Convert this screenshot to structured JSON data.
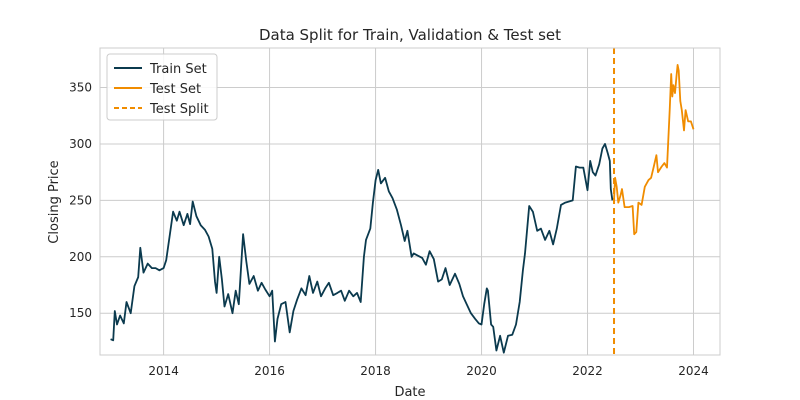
{
  "chart_data": {
    "type": "line",
    "title": "Data Split for Train, Validation & Test set",
    "xlabel": "Date",
    "ylabel": "Closing Price",
    "xlim": [
      2012.8,
      2024.5
    ],
    "ylim": [
      113,
      385
    ],
    "x_ticks": [
      2014,
      2016,
      2018,
      2020,
      2022,
      2024
    ],
    "x_tick_labels": [
      "2014",
      "2016",
      "2018",
      "2020",
      "2022",
      "2024"
    ],
    "y_ticks": [
      150,
      200,
      250,
      300,
      350
    ],
    "y_tick_labels": [
      "150",
      "200",
      "250",
      "300",
      "350"
    ],
    "grid": true,
    "legend": "top-left",
    "series": [
      {
        "name": "Train Set",
        "color": "#0b3a4e",
        "style": "solid",
        "points": [
          [
            2013.0,
            127
          ],
          [
            2013.05,
            126
          ],
          [
            2013.08,
            152
          ],
          [
            2013.12,
            140
          ],
          [
            2013.18,
            148
          ],
          [
            2013.25,
            141
          ],
          [
            2013.3,
            160
          ],
          [
            2013.38,
            150
          ],
          [
            2013.45,
            174
          ],
          [
            2013.52,
            182
          ],
          [
            2013.56,
            208
          ],
          [
            2013.62,
            186
          ],
          [
            2013.7,
            194
          ],
          [
            2013.78,
            190
          ],
          [
            2013.85,
            190
          ],
          [
            2013.92,
            188
          ],
          [
            2014.0,
            190
          ],
          [
            2014.05,
            197
          ],
          [
            2014.12,
            220
          ],
          [
            2014.18,
            240
          ],
          [
            2014.25,
            232
          ],
          [
            2014.3,
            240
          ],
          [
            2014.38,
            228
          ],
          [
            2014.45,
            238
          ],
          [
            2014.5,
            229
          ],
          [
            2014.55,
            249
          ],
          [
            2014.62,
            236
          ],
          [
            2014.7,
            228
          ],
          [
            2014.78,
            224
          ],
          [
            2014.85,
            218
          ],
          [
            2014.92,
            207
          ],
          [
            2014.97,
            178
          ],
          [
            2015.0,
            168
          ],
          [
            2015.05,
            200
          ],
          [
            2015.1,
            180
          ],
          [
            2015.15,
            156
          ],
          [
            2015.22,
            167
          ],
          [
            2015.3,
            150
          ],
          [
            2015.36,
            170
          ],
          [
            2015.42,
            158
          ],
          [
            2015.5,
            220
          ],
          [
            2015.56,
            196
          ],
          [
            2015.62,
            176
          ],
          [
            2015.7,
            183
          ],
          [
            2015.78,
            170
          ],
          [
            2015.85,
            177
          ],
          [
            2015.92,
            171
          ],
          [
            2016.0,
            165
          ],
          [
            2016.05,
            170
          ],
          [
            2016.1,
            125
          ],
          [
            2016.15,
            145
          ],
          [
            2016.22,
            158
          ],
          [
            2016.3,
            160
          ],
          [
            2016.38,
            133
          ],
          [
            2016.45,
            152
          ],
          [
            2016.52,
            162
          ],
          [
            2016.6,
            172
          ],
          [
            2016.68,
            166
          ],
          [
            2016.75,
            183
          ],
          [
            2016.82,
            168
          ],
          [
            2016.9,
            178
          ],
          [
            2016.97,
            165
          ],
          [
            2017.05,
            172
          ],
          [
            2017.12,
            177
          ],
          [
            2017.2,
            166
          ],
          [
            2017.28,
            168
          ],
          [
            2017.35,
            170
          ],
          [
            2017.42,
            161
          ],
          [
            2017.5,
            170
          ],
          [
            2017.58,
            165
          ],
          [
            2017.65,
            168
          ],
          [
            2017.72,
            160
          ],
          [
            2017.78,
            200
          ],
          [
            2017.82,
            215
          ],
          [
            2017.9,
            225
          ],
          [
            2017.95,
            248
          ],
          [
            2018.0,
            268
          ],
          [
            2018.05,
            277
          ],
          [
            2018.1,
            265
          ],
          [
            2018.18,
            270
          ],
          [
            2018.25,
            258
          ],
          [
            2018.32,
            252
          ],
          [
            2018.4,
            242
          ],
          [
            2018.48,
            228
          ],
          [
            2018.55,
            214
          ],
          [
            2018.6,
            223
          ],
          [
            2018.68,
            200
          ],
          [
            2018.72,
            203
          ],
          [
            2018.8,
            201
          ],
          [
            2018.88,
            199
          ],
          [
            2018.95,
            193
          ],
          [
            2019.02,
            205
          ],
          [
            2019.1,
            198
          ],
          [
            2019.18,
            178
          ],
          [
            2019.25,
            180
          ],
          [
            2019.32,
            190
          ],
          [
            2019.4,
            175
          ],
          [
            2019.5,
            185
          ],
          [
            2019.58,
            176
          ],
          [
            2019.65,
            165
          ],
          [
            2019.72,
            158
          ],
          [
            2019.8,
            150
          ],
          [
            2019.88,
            145
          ],
          [
            2019.95,
            141
          ],
          [
            2020.0,
            140
          ],
          [
            2020.05,
            158
          ],
          [
            2020.1,
            172
          ],
          [
            2020.12,
            170
          ],
          [
            2020.18,
            140
          ],
          [
            2020.22,
            138
          ],
          [
            2020.28,
            117
          ],
          [
            2020.35,
            130
          ],
          [
            2020.42,
            115
          ],
          [
            2020.5,
            130
          ],
          [
            2020.58,
            131
          ],
          [
            2020.65,
            140
          ],
          [
            2020.72,
            160
          ],
          [
            2020.78,
            188
          ],
          [
            2020.82,
            203
          ],
          [
            2020.9,
            245
          ],
          [
            2020.97,
            240
          ],
          [
            2021.05,
            223
          ],
          [
            2021.12,
            225
          ],
          [
            2021.2,
            215
          ],
          [
            2021.28,
            223
          ],
          [
            2021.35,
            211
          ],
          [
            2021.42,
            225
          ],
          [
            2021.5,
            246
          ],
          [
            2021.58,
            248
          ],
          [
            2021.65,
            249
          ],
          [
            2021.72,
            250
          ],
          [
            2021.78,
            280
          ],
          [
            2021.85,
            279
          ],
          [
            2021.92,
            279
          ],
          [
            2022.0,
            259
          ],
          [
            2022.05,
            285
          ],
          [
            2022.1,
            275
          ],
          [
            2022.15,
            272
          ],
          [
            2022.22,
            282
          ],
          [
            2022.28,
            296
          ],
          [
            2022.33,
            300
          ],
          [
            2022.38,
            292
          ],
          [
            2022.42,
            285
          ],
          [
            2022.44,
            260
          ],
          [
            2022.47,
            250
          ]
        ]
      },
      {
        "name": "Test Set",
        "color": "#f08c00",
        "style": "solid",
        "points": [
          [
            2022.5,
            250
          ],
          [
            2022.52,
            270
          ],
          [
            2022.55,
            262
          ],
          [
            2022.58,
            248
          ],
          [
            2022.62,
            254
          ],
          [
            2022.65,
            260
          ],
          [
            2022.7,
            244
          ],
          [
            2022.78,
            244
          ],
          [
            2022.85,
            245
          ],
          [
            2022.88,
            220
          ],
          [
            2022.92,
            222
          ],
          [
            2022.96,
            248
          ],
          [
            2023.02,
            246
          ],
          [
            2023.08,
            262
          ],
          [
            2023.15,
            268
          ],
          [
            2023.2,
            270
          ],
          [
            2023.25,
            280
          ],
          [
            2023.3,
            290
          ],
          [
            2023.33,
            275
          ],
          [
            2023.4,
            280
          ],
          [
            2023.45,
            283
          ],
          [
            2023.5,
            279
          ],
          [
            2023.55,
            330
          ],
          [
            2023.58,
            362
          ],
          [
            2023.6,
            342
          ],
          [
            2023.62,
            352
          ],
          [
            2023.65,
            345
          ],
          [
            2023.68,
            360
          ],
          [
            2023.7,
            370
          ],
          [
            2023.72,
            365
          ],
          [
            2023.75,
            338
          ],
          [
            2023.78,
            330
          ],
          [
            2023.82,
            312
          ],
          [
            2023.85,
            330
          ],
          [
            2023.9,
            320
          ],
          [
            2023.95,
            320
          ],
          [
            2024.0,
            313
          ]
        ]
      },
      {
        "name": "Test Split",
        "color": "#f08c00",
        "style": "dashed",
        "x": 2022.5
      }
    ]
  }
}
